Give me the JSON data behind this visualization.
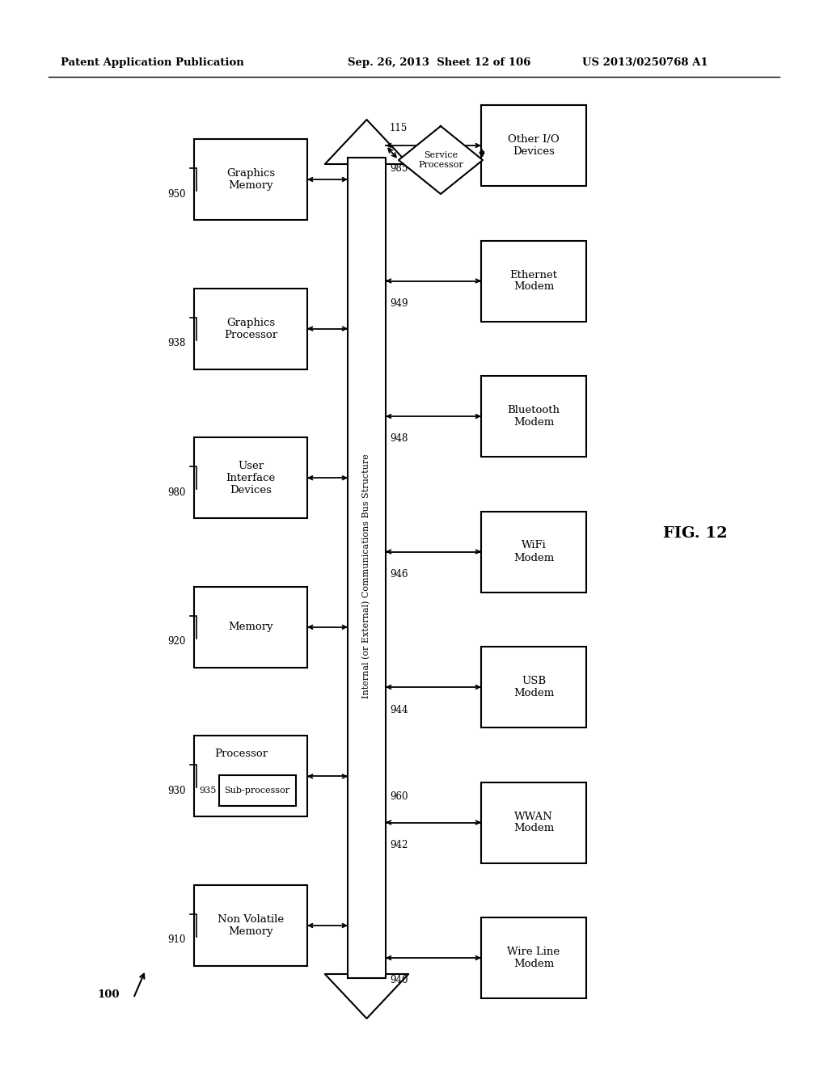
{
  "header_left": "Patent Application Publication",
  "header_mid": "Sep. 26, 2013  Sheet 12 of 106",
  "header_right": "US 2013/0250768 A1",
  "fig_label": "FIG. 12",
  "bg_color": "#ffffff",
  "left_boxes": [
    {
      "label": "Non Volatile\nMemory",
      "ref": "910"
    },
    {
      "label": "Processor",
      "ref": "930",
      "has_inner": true,
      "inner_label": "Sub-processor",
      "inner_ref": "935"
    },
    {
      "label": "Memory",
      "ref": "920"
    },
    {
      "label": "User\nInterface\nDevices",
      "ref": "980"
    },
    {
      "label": "Graphics\nProcessor",
      "ref": "938"
    },
    {
      "label": "Graphics\nMemory",
      "ref": "950"
    }
  ],
  "right_boxes": [
    {
      "label": "Wire Line\nModem",
      "ref": "940"
    },
    {
      "label": "WWAN\nModem",
      "ref": "942"
    },
    {
      "label": "USB\nModem",
      "ref": "944"
    },
    {
      "label": "WiFi\nModem",
      "ref": "946"
    },
    {
      "label": "Bluetooth\nModem",
      "ref": "948"
    },
    {
      "label": "Ethernet\nModem",
      "ref": "949"
    },
    {
      "label": "Other I/O\nDevices",
      "ref": "985"
    }
  ],
  "bus_label": "Internal (or External) Communications Bus Structure",
  "bus_ref": "960",
  "service_proc_label": "Service\nProcessor",
  "service_proc_ref": "115",
  "ref_100": "100"
}
